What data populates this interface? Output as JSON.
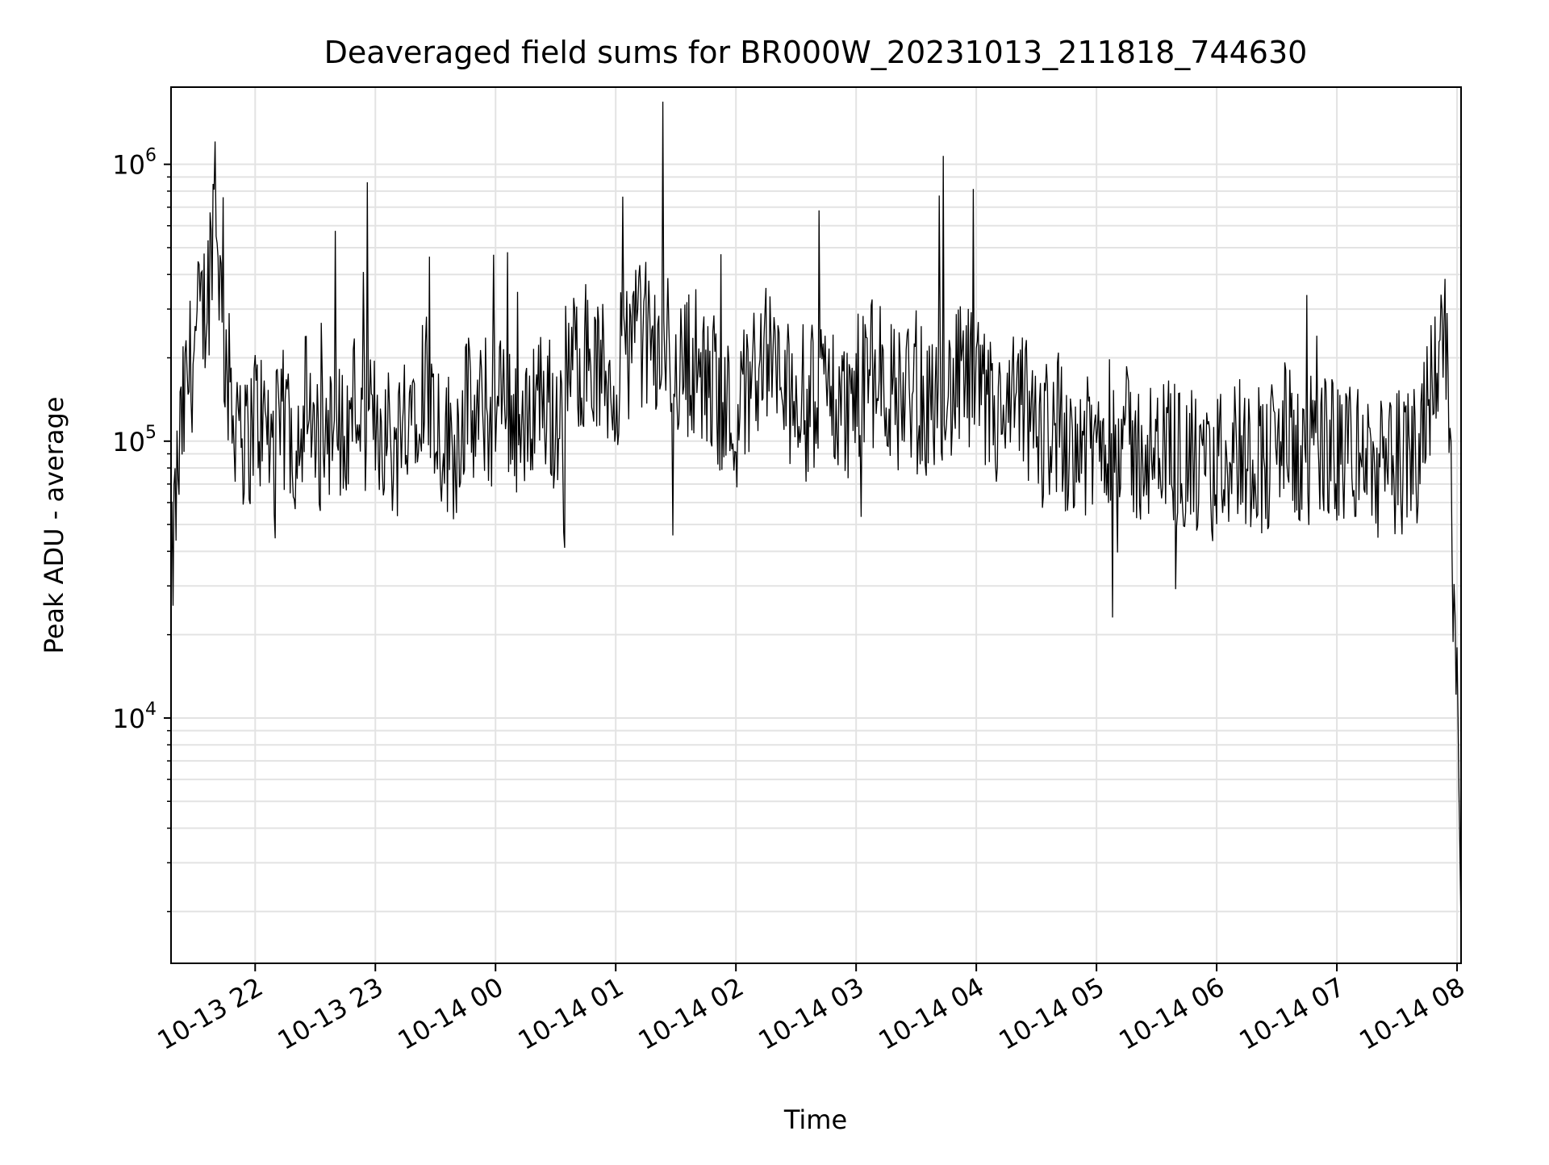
{
  "chart_data": {
    "type": "line",
    "title": "Deaveraged field sums for BR000W_20231013_211818_744630",
    "xlabel": "Time",
    "ylabel": "Peak ADU - average",
    "yscale": "log",
    "xlim": [
      "2023-10-13 21:18",
      "2023-10-14 08:02"
    ],
    "ylim": [
      1300,
      1900000
    ],
    "grid": true,
    "line_color": "#000000",
    "grid_color": "#e3e3e3",
    "x_ticks": [
      {
        "time": "2023-10-13 22:00",
        "label": "10-13 22"
      },
      {
        "time": "2023-10-13 23:00",
        "label": "10-13 23"
      },
      {
        "time": "2023-10-14 00:00",
        "label": "10-14 00"
      },
      {
        "time": "2023-10-14 01:00",
        "label": "10-14 01"
      },
      {
        "time": "2023-10-14 02:00",
        "label": "10-14 02"
      },
      {
        "time": "2023-10-14 03:00",
        "label": "10-14 03"
      },
      {
        "time": "2023-10-14 04:00",
        "label": "10-14 04"
      },
      {
        "time": "2023-10-14 05:00",
        "label": "10-14 05"
      },
      {
        "time": "2023-10-14 06:00",
        "label": "10-14 06"
      },
      {
        "time": "2023-10-14 07:00",
        "label": "10-14 07"
      },
      {
        "time": "2023-10-14 08:00",
        "label": "10-14 08"
      }
    ],
    "y_ticks": [
      {
        "value": 10000,
        "base": "10",
        "exp": "4"
      },
      {
        "value": 100000,
        "base": "10",
        "exp": "5"
      },
      {
        "value": 1000000,
        "base": "10",
        "exp": "6"
      }
    ],
    "x": [
      "2023-10-13 21:18",
      "2023-10-13 21:20",
      "2023-10-13 21:23",
      "2023-10-13 21:26",
      "2023-10-13 21:29",
      "2023-10-13 21:32",
      "2023-10-13 21:35",
      "2023-10-13 21:37",
      "2023-10-13 21:40",
      "2023-10-13 21:43",
      "2023-10-13 21:46",
      "2023-10-13 21:49",
      "2023-10-13 21:52",
      "2023-10-13 21:55",
      "2023-10-13 22:00",
      "2023-10-13 22:05",
      "2023-10-13 22:10",
      "2023-10-13 22:15",
      "2023-10-13 22:20",
      "2023-10-13 22:25",
      "2023-10-13 22:30",
      "2023-10-13 22:35",
      "2023-10-13 22:40",
      "2023-10-13 22:45",
      "2023-10-13 22:50",
      "2023-10-13 22:55",
      "2023-10-13 23:00",
      "2023-10-13 23:05",
      "2023-10-13 23:10",
      "2023-10-13 23:15",
      "2023-10-13 23:20",
      "2023-10-13 23:25",
      "2023-10-13 23:30",
      "2023-10-13 23:35",
      "2023-10-13 23:40",
      "2023-10-13 23:45",
      "2023-10-13 23:50",
      "2023-10-13 23:55",
      "2023-10-14 00:00",
      "2023-10-14 00:05",
      "2023-10-14 00:10",
      "2023-10-14 00:15",
      "2023-10-14 00:20",
      "2023-10-14 00:25",
      "2023-10-14 00:30",
      "2023-10-14 00:35",
      "2023-10-14 00:40",
      "2023-10-14 00:45",
      "2023-10-14 00:50",
      "2023-10-14 00:55",
      "2023-10-14 01:00",
      "2023-10-14 01:05",
      "2023-10-14 01:10",
      "2023-10-14 01:15",
      "2023-10-14 01:20",
      "2023-10-14 01:25",
      "2023-10-14 01:30",
      "2023-10-14 01:35",
      "2023-10-14 01:40",
      "2023-10-14 01:45",
      "2023-10-14 01:50",
      "2023-10-14 01:55",
      "2023-10-14 02:00",
      "2023-10-14 02:05",
      "2023-10-14 02:10",
      "2023-10-14 02:15",
      "2023-10-14 02:20",
      "2023-10-14 02:25",
      "2023-10-14 02:30",
      "2023-10-14 02:35",
      "2023-10-14 02:40",
      "2023-10-14 02:45",
      "2023-10-14 02:50",
      "2023-10-14 02:55",
      "2023-10-14 03:00",
      "2023-10-14 03:05",
      "2023-10-14 03:10",
      "2023-10-14 03:15",
      "2023-10-14 03:20",
      "2023-10-14 03:25",
      "2023-10-14 03:30",
      "2023-10-14 03:35",
      "2023-10-14 03:40",
      "2023-10-14 03:45",
      "2023-10-14 03:50",
      "2023-10-14 03:55",
      "2023-10-14 04:00",
      "2023-10-14 04:05",
      "2023-10-14 04:10",
      "2023-10-14 04:15",
      "2023-10-14 04:20",
      "2023-10-14 04:25",
      "2023-10-14 04:30",
      "2023-10-14 04:35",
      "2023-10-14 04:40",
      "2023-10-14 04:45",
      "2023-10-14 04:50",
      "2023-10-14 04:55",
      "2023-10-14 05:00",
      "2023-10-14 05:05",
      "2023-10-14 05:10",
      "2023-10-14 05:15",
      "2023-10-14 05:20",
      "2023-10-14 05:25",
      "2023-10-14 05:30",
      "2023-10-14 05:35",
      "2023-10-14 05:40",
      "2023-10-14 05:45",
      "2023-10-14 05:50",
      "2023-10-14 05:55",
      "2023-10-14 06:00",
      "2023-10-14 06:05",
      "2023-10-14 06:10",
      "2023-10-14 06:15",
      "2023-10-14 06:20",
      "2023-10-14 06:25",
      "2023-10-14 06:30",
      "2023-10-14 06:35",
      "2023-10-14 06:40",
      "2023-10-14 06:45",
      "2023-10-14 06:50",
      "2023-10-14 06:55",
      "2023-10-14 07:00",
      "2023-10-14 07:05",
      "2023-10-14 07:10",
      "2023-10-14 07:15",
      "2023-10-14 07:20",
      "2023-10-14 07:25",
      "2023-10-14 07:30",
      "2023-10-14 07:35",
      "2023-10-14 07:40",
      "2023-10-14 07:45",
      "2023-10-14 07:50",
      "2023-10-14 07:52",
      "2023-10-14 07:54",
      "2023-10-14 07:56",
      "2023-10-14 07:58",
      "2023-10-14 08:00",
      "2023-10-14 08:01",
      "2023-10-14 08:02"
    ],
    "series": [
      {
        "values": [
          27000,
          55000,
          105000,
          160000,
          210000,
          260000,
          310000,
          380000,
          960000,
          300000,
          180000,
          120000,
          150000,
          90000,
          130000,
          110000,
          95000,
          120000,
          100000,
          140000,
          85000,
          110000,
          125000,
          95000,
          150000,
          100000,
          120000,
          110000,
          90000,
          135000,
          150000,
          180000,
          120000,
          100000,
          95000,
          140000,
          110000,
          130000,
          115000,
          150000,
          120000,
          100000,
          160000,
          140000,
          120000,
          170000,
          200000,
          210000,
          180000,
          170000,
          160000,
          210000,
          250000,
          240000,
          200000,
          230000,
          180000,
          190000,
          200000,
          150000,
          160000,
          130000,
          120000,
          150000,
          200000,
          210000,
          180000,
          140000,
          170000,
          130000,
          150000,
          160000,
          140000,
          130000,
          150000,
          170000,
          180000,
          160000,
          140000,
          150000,
          160000,
          130000,
          150000,
          140000,
          160000,
          170000,
          150000,
          130000,
          120000,
          110000,
          140000,
          130000,
          100000,
          110000,
          120000,
          100000,
          110000,
          90000,
          100000,
          110000,
          120000,
          100000,
          90000,
          95000,
          80000,
          100000,
          90000,
          85000,
          80000,
          70000,
          80000,
          90000,
          100000,
          85000,
          95000,
          80000,
          100000,
          110000,
          85000,
          90000,
          95000,
          100000,
          85000,
          95000,
          90000,
          85000,
          80000,
          75000,
          85000,
          80000,
          95000,
          150000,
          200000,
          320000,
          230000,
          130000,
          45000,
          18000,
          5200,
          1700
        ]
      }
    ]
  }
}
